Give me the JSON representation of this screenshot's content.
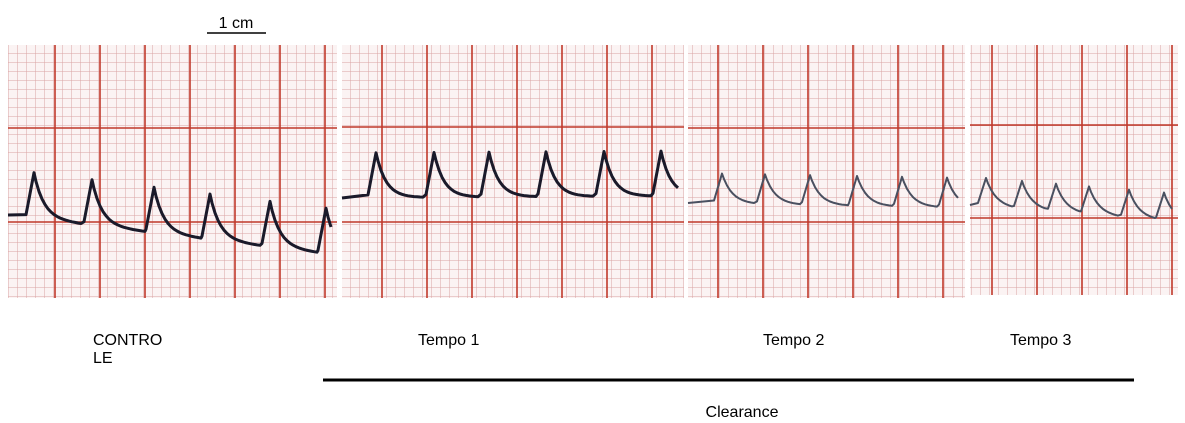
{
  "scale_label": "1 cm",
  "panels": [
    {
      "label_lines": [
        "CONTRO",
        "LE"
      ]
    },
    {
      "label_lines": [
        "Tempo 1"
      ]
    },
    {
      "label_lines": [
        "Tempo 2"
      ]
    },
    {
      "label_lines": [
        "Tempo 3"
      ]
    }
  ],
  "bracket_label": "Clearance"
}
